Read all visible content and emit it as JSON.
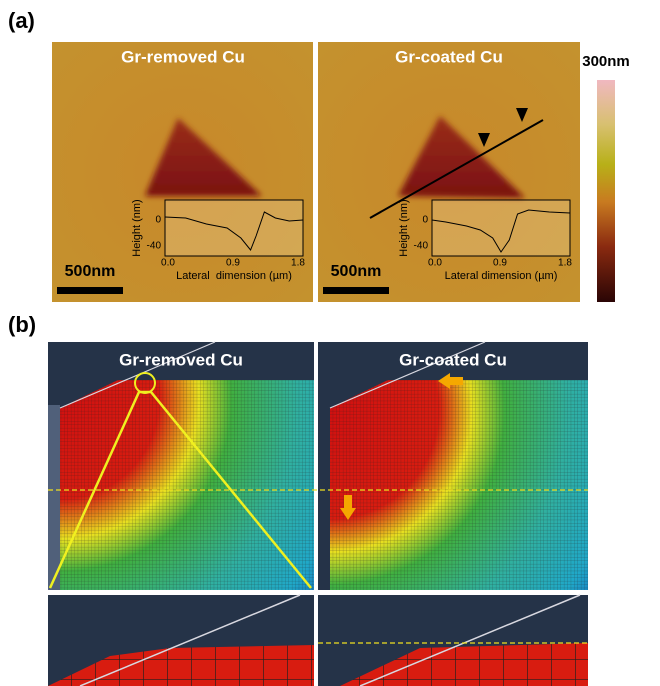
{
  "panel_a": {
    "label": "(a)",
    "images": [
      {
        "title": "Gr-removed Cu",
        "scale_bar": "500nm",
        "inset": {
          "y_label": "Height (nm)",
          "y_ticks": [
            "0",
            "-40"
          ],
          "x_ticks": [
            "0.0",
            "0.9",
            "1.8"
          ],
          "x_label": "Lateral  dimension (µm)"
        }
      },
      {
        "title": "Gr-coated Cu",
        "scale_bar": "500nm",
        "inset": {
          "y_label": "Height (nm)",
          "y_ticks": [
            "0",
            "-40"
          ],
          "x_ticks": [
            "0.0",
            "0.9",
            "1.8"
          ],
          "x_label": "Lateral dimension (µm)"
        }
      }
    ],
    "color_bar": {
      "max_label": "300nm"
    }
  },
  "panel_b": {
    "label": "(b)",
    "images": [
      {
        "title": "Gr-removed Cu"
      },
      {
        "title": "Gr-coated Cu"
      }
    ]
  }
}
